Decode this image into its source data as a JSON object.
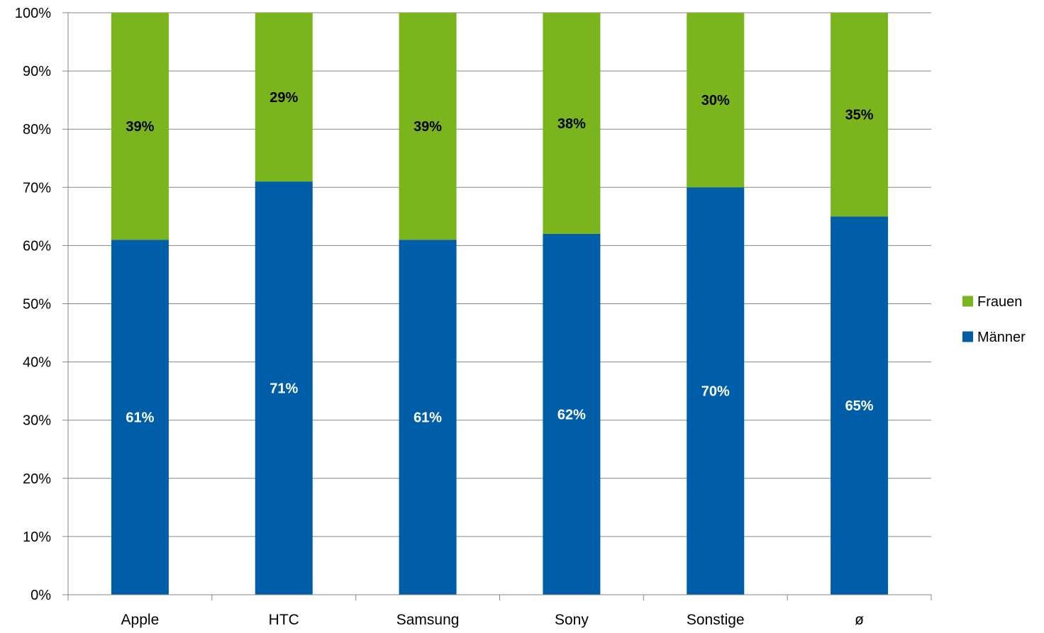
{
  "chart_data": {
    "type": "bar",
    "stacked": true,
    "categories": [
      "Apple",
      "HTC",
      "Samsung",
      "Sony",
      "Sonstige",
      "ø"
    ],
    "series": [
      {
        "name": "Männer",
        "values": [
          61,
          71,
          61,
          62,
          70,
          65
        ],
        "labels": [
          "61%",
          "71%",
          "61%",
          "62%",
          "70%",
          "65%"
        ],
        "color": "#005EA8",
        "label_color": "#FFFFFF"
      },
      {
        "name": "Frauen",
        "values": [
          39,
          29,
          39,
          38,
          30,
          35
        ],
        "labels": [
          "39%",
          "29%",
          "39%",
          "38%",
          "30%",
          "35%"
        ],
        "color": "#7AB51D",
        "label_color": "#000000"
      }
    ],
    "ylim": [
      0,
      100
    ],
    "yticks": [
      0,
      10,
      20,
      30,
      40,
      50,
      60,
      70,
      80,
      90,
      100
    ],
    "ytick_labels": [
      "0%",
      "10%",
      "20%",
      "30%",
      "40%",
      "50%",
      "60%",
      "70%",
      "80%",
      "90%",
      "100%"
    ],
    "title": "",
    "xlabel": "",
    "ylabel": "",
    "grid": true,
    "legend": {
      "position": "right",
      "items": [
        {
          "label": "Frauen",
          "color": "#7AB51D"
        },
        {
          "label": "Männer",
          "color": "#005EA8"
        }
      ]
    },
    "axis_color": "#868686"
  }
}
